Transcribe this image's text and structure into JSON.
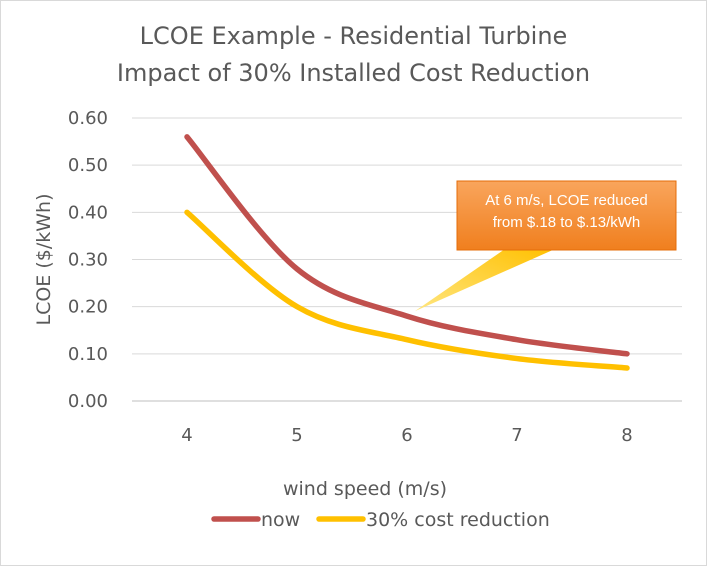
{
  "chart_data": {
    "type": "line",
    "title": "LCOE Example - Residential Turbine",
    "subtitle": "Impact of 30% Installed Cost Reduction",
    "xlabel": "wind speed (m/s)",
    "ylabel": "LCOE ($/kWh)",
    "x": [
      4,
      5,
      6,
      7,
      8
    ],
    "ylim": [
      0,
      0.6
    ],
    "yticks": [
      "0.00",
      "0.10",
      "0.20",
      "0.30",
      "0.40",
      "0.50",
      "0.60"
    ],
    "xticks": [
      "4",
      "5",
      "6",
      "7",
      "8"
    ],
    "grid": true,
    "legend_position": "bottom",
    "series": [
      {
        "name": "now",
        "color": "#C0504D",
        "values": [
          0.56,
          0.28,
          0.18,
          0.13,
          0.1
        ]
      },
      {
        "name": "30% cost reduction",
        "color": "#FFC000",
        "values": [
          0.4,
          0.2,
          0.13,
          0.09,
          0.07
        ]
      }
    ],
    "annotation": {
      "lines": [
        "At 6 m/s, LCOE reduced",
        "from $.18 to $.13/kWh"
      ],
      "x": 6,
      "y": 0.18,
      "color": "#F79646"
    }
  }
}
